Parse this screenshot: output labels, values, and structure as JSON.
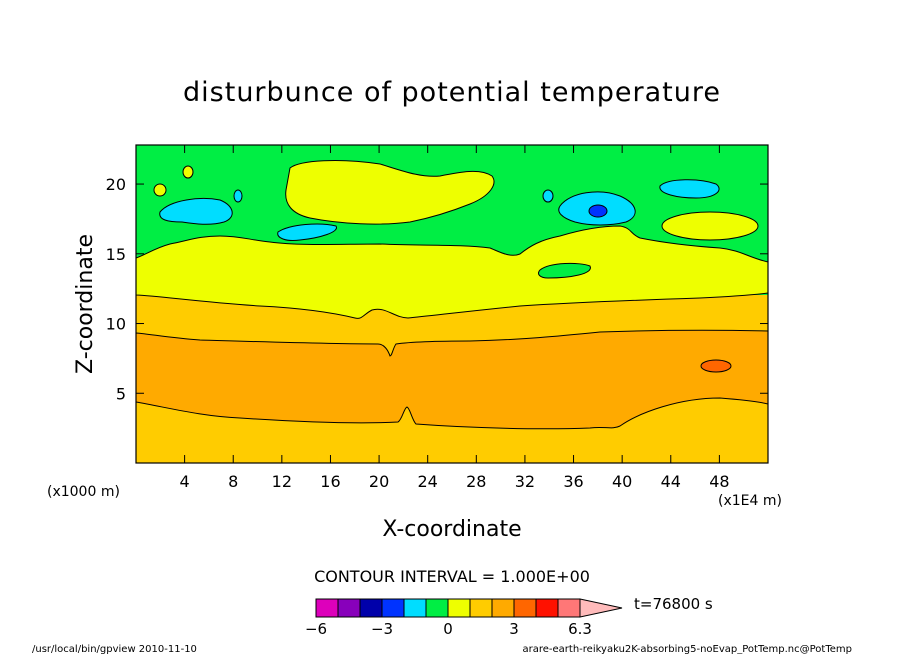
{
  "chart_data": {
    "type": "contour",
    "title": "disturbunce of potential temperature",
    "xlabel": "X-coordinate",
    "ylabel": "Z-coordinate",
    "x_scale_note": "(x1E4 m)",
    "y_scale_note": "(x1000 m)",
    "xlim": [
      0,
      52
    ],
    "ylim": [
      0,
      22.8
    ],
    "x_ticks": [
      "4",
      "8",
      "12",
      "16",
      "20",
      "24",
      "28",
      "32",
      "36",
      "40",
      "44",
      "48"
    ],
    "y_ticks": [
      "5",
      "10",
      "15",
      "20"
    ],
    "contour_interval_text": "CONTOUR INTERVAL = 1.000E+00",
    "time_label": "t=76800 s",
    "colorbar": {
      "tick_labels": [
        "−6",
        "−3",
        "0",
        "3",
        "6.3"
      ],
      "colors": [
        "#dd00bb",
        "#8800bb",
        "#0000aa",
        "#0033ff",
        "#00ddff",
        "#00ee44",
        "#eeff00",
        "#ffcc00",
        "#ffaa00",
        "#ff6600",
        "#ff1100",
        "#ff7777",
        "#ffbbbb"
      ]
    },
    "background_colors": {
      "low": "#ffcc00",
      "band_orange": "#ffaa00",
      "band_yellow": "#eeff00",
      "upper": "#00ee44",
      "cold_spots": "#00ddff",
      "cold_core": "#0033ff",
      "warm_core": "#ff6600"
    }
  },
  "footer": {
    "left": "/usr/local/bin/gpview  2010-11-10",
    "right": "arare-earth-reikyaku2K-absorbing5-noEvap_PotTemp.nc@PotTemp"
  }
}
